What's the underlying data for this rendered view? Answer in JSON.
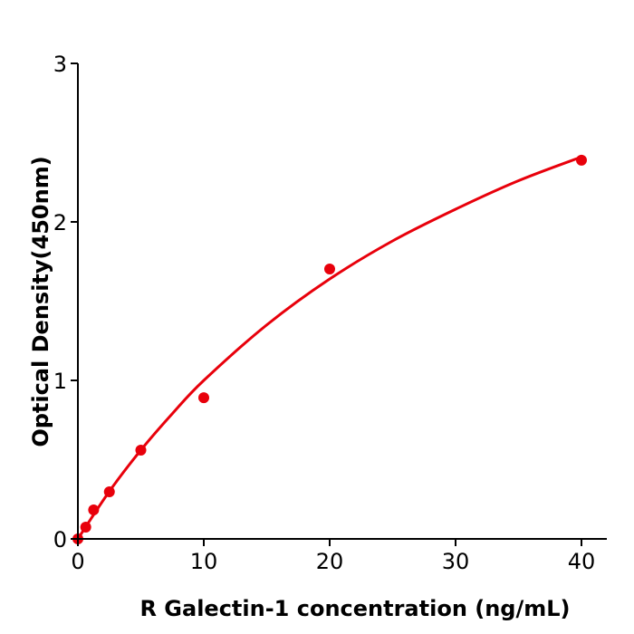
{
  "chart_data": {
    "type": "scatter",
    "title": "",
    "xlabel": "R  Galectin-1 concentration (ng/mL)",
    "ylabel": "Optical Density(450nm)",
    "xlim": [
      0,
      42
    ],
    "ylim": [
      0,
      3
    ],
    "xticks": [
      0,
      10,
      20,
      30,
      40
    ],
    "yticks": [
      0,
      1,
      2,
      3
    ],
    "grid": false,
    "color": "#e8000b",
    "points": {
      "x": [
        0,
        0.625,
        1.25,
        2.5,
        5,
        10,
        20,
        40
      ],
      "y": [
        0.0,
        0.074,
        0.183,
        0.297,
        0.56,
        0.891,
        1.703,
        2.389
      ]
    },
    "fit_curve": {
      "x": [
        0,
        2.5,
        5,
        7.5,
        10,
        15,
        20,
        25,
        30,
        35,
        40
      ],
      "y": [
        0,
        0.3,
        0.56,
        0.79,
        1.0,
        1.35,
        1.64,
        1.88,
        2.08,
        2.26,
        2.41
      ]
    }
  }
}
